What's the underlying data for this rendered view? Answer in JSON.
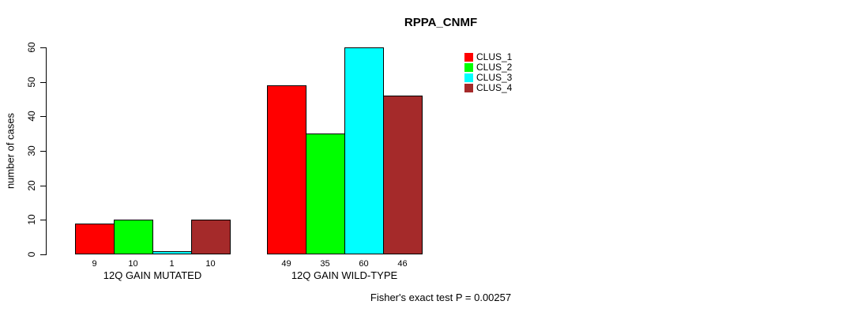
{
  "page": {
    "background_color": "#ffffff",
    "text_color": "#000000"
  },
  "chart_data": {
    "type": "bar",
    "title": "RPPA_CNMF",
    "ylabel": "number of cases",
    "xlabel": "",
    "categories": [
      "12Q GAIN MUTATED",
      "12Q GAIN WILD-TYPE"
    ],
    "series": [
      {
        "name": "CLUS_1",
        "color": "#ff0000",
        "values": [
          9,
          49
        ]
      },
      {
        "name": "CLUS_2",
        "color": "#00ff00",
        "values": [
          10,
          35
        ]
      },
      {
        "name": "CLUS_3",
        "color": "#00ffff",
        "values": [
          1,
          60
        ]
      },
      {
        "name": "CLUS_4",
        "color": "#a52a2a",
        "values": [
          10,
          46
        ]
      }
    ],
    "ylim": [
      0,
      60
    ],
    "yticks": [
      0,
      10,
      20,
      30,
      40,
      50,
      60
    ],
    "grid": false,
    "bar_value_labels": true,
    "legend_position": "top-right",
    "annotation": "Fisher's exact test P = 0.00257"
  }
}
